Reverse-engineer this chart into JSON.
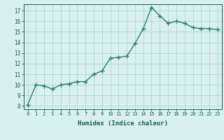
{
  "x": [
    0,
    1,
    2,
    3,
    4,
    5,
    6,
    7,
    8,
    9,
    10,
    11,
    12,
    13,
    14,
    15,
    16,
    17,
    18,
    19,
    20,
    21,
    22,
    23
  ],
  "y": [
    8.1,
    10.0,
    9.9,
    9.6,
    10.0,
    10.1,
    10.3,
    10.3,
    11.0,
    11.3,
    12.5,
    12.6,
    12.7,
    13.9,
    15.3,
    17.3,
    16.5,
    15.8,
    16.0,
    15.8,
    15.4,
    15.3,
    15.3,
    15.2
  ],
  "line_color": "#2e7d6e",
  "bg_color": "#d8f0ee",
  "grid_color": "#aed8d4",
  "xlabel": "Humidex (Indice chaleur)",
  "ylabel_ticks": [
    8,
    9,
    10,
    11,
    12,
    13,
    14,
    15,
    16,
    17
  ],
  "xlim": [
    -0.5,
    23.5
  ],
  "ylim": [
    7.7,
    17.6
  ],
  "xlabel_color": "#1a5c52",
  "tick_color": "#1a5c52",
  "marker": "+",
  "marker_size": 4,
  "linewidth": 1.0
}
